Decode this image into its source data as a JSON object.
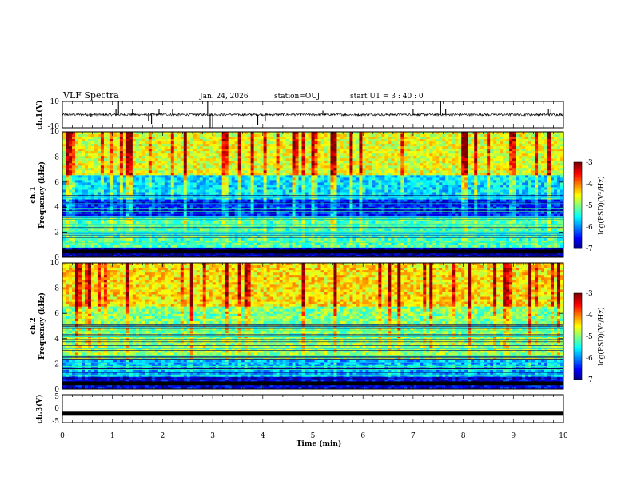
{
  "header": {
    "title": "VLF Spectra",
    "date": "Jan. 24, 2026",
    "station": "station=OUJ",
    "start": "start  UT =   3 : 40 : 0"
  },
  "chart_data": [
    {
      "type": "line",
      "name": "ch1-waveform",
      "ylabel": "ch.1(V)",
      "ylim": [
        -10,
        10
      ],
      "yticks": [
        "10",
        "-10"
      ],
      "xlim": [
        0,
        10
      ],
      "baseline": 0,
      "spikes": [
        {
          "x": 0.57,
          "y": -2
        },
        {
          "x": 1.07,
          "y": 4
        },
        {
          "x": 1.12,
          "y": 10
        },
        {
          "x": 1.4,
          "y": 4
        },
        {
          "x": 1.72,
          "y": -5
        },
        {
          "x": 1.78,
          "y": -7
        },
        {
          "x": 1.93,
          "y": 4
        },
        {
          "x": 2.2,
          "y": 4
        },
        {
          "x": 2.9,
          "y": 10
        },
        {
          "x": 2.95,
          "y": -10
        },
        {
          "x": 3.0,
          "y": -10
        },
        {
          "x": 3.9,
          "y": -8
        },
        {
          "x": 4.05,
          "y": -5
        },
        {
          "x": 5.2,
          "y": 3
        },
        {
          "x": 7.0,
          "y": 4
        },
        {
          "x": 7.55,
          "y": 10
        },
        {
          "x": 7.65,
          "y": 4
        },
        {
          "x": 9.7,
          "y": 4
        },
        {
          "x": 9.75,
          "y": 4
        }
      ]
    },
    {
      "type": "heatmap",
      "name": "ch1-spectrogram",
      "ylabel": "ch.1\nFrequency (kHz)",
      "ylabel_line1": "ch.1",
      "ylabel_line2": "Frequency (kHz)",
      "xlim": [
        0,
        10
      ],
      "ylim": [
        0,
        10
      ],
      "yticks": [
        "0",
        "2",
        "4",
        "6",
        "8",
        "10"
      ],
      "colorbar": {
        "label": "log(PSD)(V²/Hz)",
        "range": [
          -7,
          -3
        ],
        "ticks": [
          "-3",
          "-4",
          "-5",
          "-6",
          "-7"
        ]
      },
      "bands": [
        {
          "from": 0,
          "to": 0.7,
          "level": -6.8
        },
        {
          "from": 0.7,
          "to": 3.3,
          "level": -5.2
        },
        {
          "from": 3.3,
          "to": 4.6,
          "level": -6.4
        },
        {
          "from": 4.6,
          "to": 6.5,
          "level": -5.6
        },
        {
          "from": 6.5,
          "to": 10,
          "level": -4.6
        }
      ]
    },
    {
      "type": "heatmap",
      "name": "ch2-spectrogram",
      "ylabel_line1": "ch.2",
      "ylabel_line2": "Frequency (kHz)",
      "xlim": [
        0,
        10
      ],
      "ylim": [
        0,
        10
      ],
      "yticks": [
        "0",
        "2",
        "4",
        "6",
        "8",
        "10"
      ],
      "colorbar": {
        "label": "log(PSD)(V²/Hz)",
        "range": [
          -7,
          -3
        ],
        "ticks": [
          "-3",
          "-4",
          "-5",
          "-6",
          "-7"
        ]
      },
      "bands": [
        {
          "from": 0,
          "to": 1.0,
          "level": -6.6
        },
        {
          "from": 1.0,
          "to": 2.4,
          "level": -5.8
        },
        {
          "from": 2.4,
          "to": 4.3,
          "level": -4.9
        },
        {
          "from": 4.3,
          "to": 6.5,
          "level": -5.0
        },
        {
          "from": 6.5,
          "to": 10,
          "level": -4.4
        }
      ]
    },
    {
      "type": "line",
      "name": "ch3-waveform",
      "ylabel": "ch.3(V)",
      "ylim": [
        -5,
        5
      ],
      "yticks": [
        "5",
        "0",
        "-5"
      ],
      "xlim": [
        0,
        10
      ],
      "xticks": [
        "0",
        "1",
        "2",
        "3",
        "4",
        "5",
        "6",
        "7",
        "8",
        "9",
        "10"
      ],
      "xlabel": "Time (min)",
      "baseline": -1.8
    }
  ]
}
